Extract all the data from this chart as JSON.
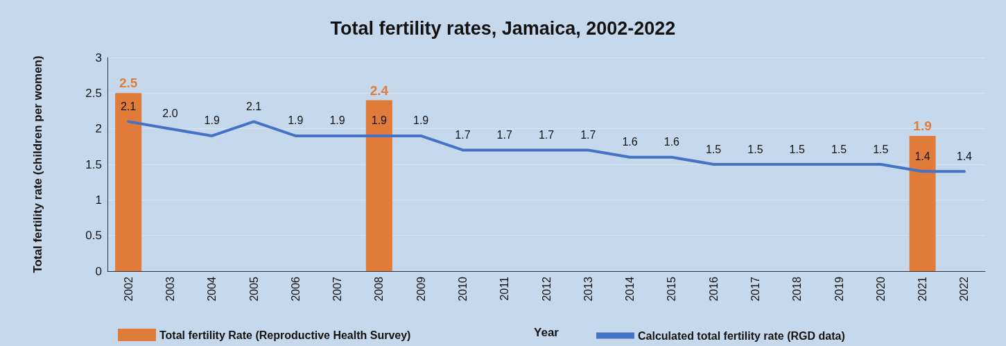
{
  "chart_data": {
    "type": "bar",
    "title": "Total fertility rates, Jamaica, 2002-2022",
    "xlabel": "Year",
    "ylabel": "Total fertility rate (children per women)",
    "categories": [
      "2002",
      "2003",
      "2004",
      "2005",
      "2006",
      "2007",
      "2008",
      "2009",
      "2010",
      "2011",
      "2012",
      "2013",
      "2014",
      "2015",
      "2016",
      "2017",
      "2018",
      "2019",
      "2020",
      "2021",
      "2022"
    ],
    "series": [
      {
        "name": "Total fertility Rate (Reproductive Health Survey)",
        "color": "#e07b39",
        "values": [
          2.5,
          null,
          null,
          null,
          null,
          null,
          2.4,
          null,
          null,
          null,
          null,
          null,
          null,
          null,
          null,
          null,
          null,
          null,
          null,
          1.9,
          null
        ],
        "value_labels": [
          "2.5",
          null,
          null,
          null,
          null,
          null,
          "2.4",
          null,
          null,
          null,
          null,
          null,
          null,
          null,
          null,
          null,
          null,
          null,
          null,
          "1.9",
          null
        ]
      },
      {
        "name": "Calculated total fertility rate (RGD data)",
        "type": "line",
        "color": "#4472c4",
        "values": [
          2.1,
          2.0,
          1.9,
          2.1,
          1.9,
          1.9,
          1.9,
          1.9,
          1.7,
          1.7,
          1.7,
          1.7,
          1.6,
          1.6,
          1.5,
          1.5,
          1.5,
          1.5,
          1.5,
          1.4,
          1.4
        ],
        "value_labels": [
          "2.1",
          "2.0",
          "1.9",
          "2.1",
          "1.9",
          "1.9",
          "1.9",
          "1.9",
          "1.7",
          "1.7",
          "1.7",
          "1.7",
          "1.6",
          "1.6",
          "1.5",
          "1.5",
          "1.5",
          "1.5",
          "1.5",
          "1.4",
          "1.4"
        ]
      }
    ],
    "ylim": [
      0,
      3
    ],
    "yticks": [
      0,
      0.5,
      1,
      1.5,
      2,
      2.5,
      3
    ],
    "grid": "y",
    "legend": "bottom",
    "marker": "none",
    "line_style": "solid"
  }
}
